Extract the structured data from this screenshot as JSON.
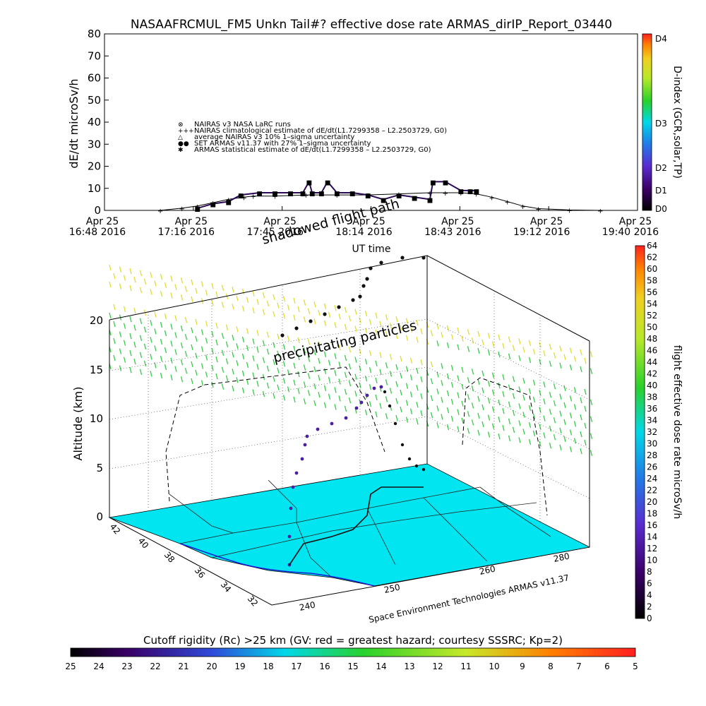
{
  "top_chart": {
    "title": "NASAAFRCMUL_FM5 Unkn Tail#? effective dose rate ARMAS_dirIP_Report_03440",
    "ylabel": "dE/dt microSv/h",
    "xlabel": "UT time",
    "overlay_texts": [
      "shadowed flight path"
    ],
    "yticks": [
      "0",
      "10",
      "20",
      "30",
      "40",
      "50",
      "60",
      "70",
      "80"
    ],
    "xticks": [
      {
        "l1": "Apr 25",
        "l2": "16:48 2016"
      },
      {
        "l1": "Apr 25",
        "l2": "17:16 2016"
      },
      {
        "l1": "Apr 25",
        "l2": "17:45 2016"
      },
      {
        "l1": "Apr 25",
        "l2": "18:14 2016"
      },
      {
        "l1": "Apr 25",
        "l2": "18:43 2016"
      },
      {
        "l1": "Apr 25",
        "l2": "19:12 2016"
      },
      {
        "l1": "Apr 25",
        "l2": "19:40 2016"
      }
    ],
    "legend": [
      {
        "marker": "⊗",
        "text": "NAIRAS v3 NASA LaRC runs"
      },
      {
        "marker": "+++",
        "text": "NAIRAS climatological estimate of dE/dt(L1.7299358 – L2.2503729, G0)"
      },
      {
        "marker": "△",
        "text": "average NAIRAS v3 10% 1–sigma uncertainty"
      },
      {
        "marker": "●●",
        "text": "SET ARMAS v11.37 with 27% 1–sigma uncertainty"
      },
      {
        "marker": "✱",
        "text": "ARMAS statistical estimate of dE/dt(L1.7299358 – L2.2503729, G0)"
      }
    ],
    "dindex": {
      "label": "D-index (GCR,solar,TP)",
      "ticks": [
        "D0",
        "D1",
        "D2",
        "D3",
        "D4"
      ]
    }
  },
  "chart_data": [
    {
      "type": "line",
      "title": "NASAAFRCMUL_FM5 Unkn Tail#? effective dose rate ARMAS_dirIP_Report_03440",
      "xlabel": "UT time",
      "ylabel": "dE/dt microSv/h",
      "ylim": [
        0,
        80
      ],
      "x_unit": "minutes after Apr 25 16:48 2016",
      "xlim": [
        0,
        172
      ],
      "series": [
        {
          "name": "NAIRAS climatological estimate of dE/dt(L1.7299358 – L2.2503729, G0)",
          "x": [
            18,
            25,
            30,
            35,
            40,
            45,
            48,
            55,
            65,
            75,
            85,
            95,
            105,
            110,
            115,
            120,
            125,
            130,
            135,
            140,
            150,
            160
          ],
          "y": [
            0,
            1,
            2,
            3.5,
            5,
            6,
            6.5,
            6.5,
            7,
            7,
            7,
            7.5,
            8,
            8,
            8,
            7.5,
            6,
            4,
            2,
            0.8,
            0.2,
            0
          ]
        },
        {
          "name": "SET ARMAS v11.37 with 27% 1–sigma uncertainty",
          "x": [
            30,
            35,
            40,
            44,
            50,
            55,
            60,
            64,
            66,
            67,
            70,
            72,
            75,
            80,
            85,
            90,
            95,
            100,
            105,
            106,
            110,
            115,
            118,
            120
          ],
          "y": [
            1,
            3,
            4,
            7,
            8,
            8,
            8,
            8,
            13,
            8,
            8,
            13,
            8,
            8,
            7,
            5,
            7,
            6,
            5,
            13,
            13,
            9,
            9,
            9
          ]
        }
      ]
    },
    {
      "type": "scatter",
      "title": "precipitating particles",
      "zlabel": "Altitude (km)",
      "zticks": [
        0,
        5,
        10,
        15,
        20
      ],
      "lat_ticks": [
        32,
        34,
        36,
        38,
        40,
        42
      ],
      "lon_ticks": [
        240,
        250,
        260,
        280
      ],
      "colorbar": {
        "label": "flight effective dose rate microSv/h",
        "range": [
          0,
          64
        ]
      }
    }
  ],
  "lower_chart": {
    "annotation": "precipitating particles",
    "zlabel": "Altitude (km)",
    "zticks": [
      "0",
      "5",
      "10",
      "15",
      "20"
    ],
    "lat_ticks": [
      "32",
      "34",
      "36",
      "38",
      "40",
      "42"
    ],
    "lon_ticks": [
      "240",
      "250",
      "260",
      "280"
    ],
    "credit": "Space Environment Technologies ARMAS v11.37",
    "colorbar": {
      "label": "flight effective dose rate microSv/h",
      "ticks": [
        "0",
        "2",
        "4",
        "6",
        "8",
        "10",
        "12",
        "14",
        "16",
        "18",
        "20",
        "22",
        "24",
        "26",
        "28",
        "30",
        "32",
        "34",
        "36",
        "38",
        "40",
        "42",
        "44",
        "46",
        "48",
        "50",
        "52",
        "54",
        "56",
        "58",
        "60",
        "62",
        "64"
      ]
    }
  },
  "cutoff_bar": {
    "label": "Cutoff rigidity (Rc) >25 km (GV: red = greatest hazard; courtesy SSSRC; Kp=2)",
    "ticks": [
      "25",
      "24",
      "23",
      "22",
      "21",
      "20",
      "19",
      "18",
      "17",
      "16",
      "15",
      "14",
      "13",
      "12",
      "11",
      "10",
      "9",
      "8",
      "7",
      "6",
      "5"
    ]
  },
  "colors": {
    "ocean_land": "#00e5f0",
    "path_dark": "#111111",
    "path_purple": "#4b1fa0",
    "field_green": "#2ecc40",
    "field_yellow": "#e8e030",
    "colorbar_stops": [
      "#000000",
      "#3a0066",
      "#5a2bd0",
      "#1f7de8",
      "#00d8e8",
      "#2ad12a",
      "#b8e82a",
      "#f0d020",
      "#ff8000",
      "#ff2020"
    ]
  }
}
